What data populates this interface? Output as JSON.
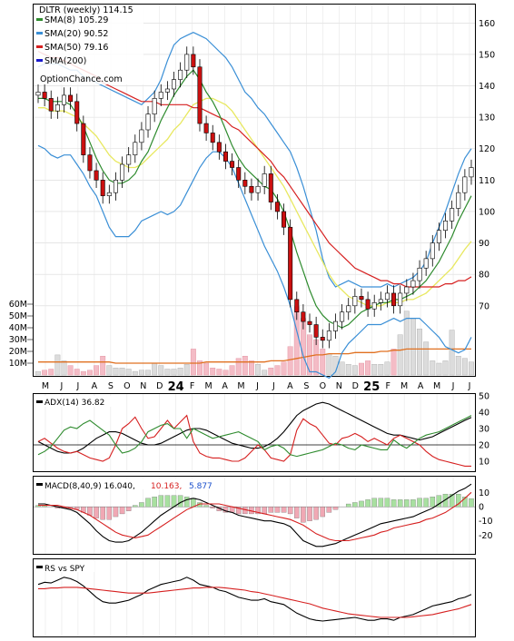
{
  "chart_data": [
    {
      "panel": "price",
      "type": "candlestick",
      "title": "DLTR (weekly) 114.15",
      "watermark": "OptionChance.com",
      "ylim": [
        50,
        165
      ],
      "yticks": [
        "160",
        "150",
        "140",
        "130",
        "120",
        "110",
        "100",
        "90",
        "80",
        "70"
      ],
      "volume_ticks": [
        "60M",
        "50M",
        "40M",
        "30M",
        "20M",
        "10M"
      ],
      "volume_ylim": [
        0,
        70
      ],
      "x_ticks": [
        "M",
        "J",
        "J",
        "A",
        "S",
        "O",
        "N",
        "D",
        "24",
        "F",
        "M",
        "A",
        "M",
        "J",
        "J",
        "A",
        "S",
        "O",
        "N",
        "D",
        "25",
        "F",
        "M",
        "A",
        "M",
        "J",
        "J"
      ],
      "legend": [
        {
          "label": "SMA(8) 105.29",
          "color": "#2e8b2e"
        },
        {
          "label": "SMA(20) 90.52",
          "color": "#3a8fd6"
        },
        {
          "label": "SMA(50) 79.16",
          "color": "#d62020"
        },
        {
          "label": "SMA(200)",
          "color": "#1a1acc"
        }
      ],
      "close": [
        138,
        136,
        132,
        134,
        137,
        135,
        128,
        118,
        113,
        110,
        105,
        106,
        110,
        115,
        118,
        122,
        126,
        131,
        136,
        138,
        139,
        142,
        145,
        150,
        146,
        128,
        125,
        122,
        119,
        116,
        114,
        110,
        108,
        106,
        108,
        112,
        103,
        100,
        95,
        72,
        68,
        65,
        64,
        60,
        59,
        62,
        65,
        68,
        70,
        73,
        72,
        69,
        71,
        72,
        74,
        70,
        74,
        76,
        78,
        82,
        85,
        90,
        94,
        97,
        101,
        106,
        111,
        114
      ],
      "sma8": [
        136,
        136,
        135,
        135,
        135,
        134,
        131,
        127,
        122,
        117,
        113,
        110,
        109,
        109,
        110,
        112,
        116,
        119,
        124,
        129,
        133,
        137,
        140,
        143,
        145,
        142,
        138,
        135,
        131,
        126,
        121,
        117,
        114,
        112,
        110,
        108,
        107,
        104,
        100,
        94,
        87,
        81,
        75,
        70,
        67,
        65,
        64,
        63,
        64,
        66,
        68,
        69,
        70,
        71,
        71,
        72,
        72,
        73,
        74,
        76,
        78,
        81,
        84,
        88,
        92,
        97,
        101,
        105
      ],
      "sma20_mid": [
        133,
        133,
        132,
        132,
        132,
        131,
        130,
        128,
        126,
        124,
        121,
        118,
        116,
        115,
        114,
        114,
        115,
        117,
        119,
        121,
        123,
        126,
        128,
        131,
        134,
        135,
        136,
        136,
        135,
        134,
        132,
        129,
        126,
        123,
        120,
        117,
        114,
        111,
        108,
        104,
        100,
        96,
        92,
        88,
        84,
        80,
        77,
        75,
        73,
        72,
        71,
        70,
        70,
        70,
        71,
        71,
        71,
        72,
        72,
        73,
        74,
        76,
        78,
        80,
        82,
        85,
        88,
        90.5
      ],
      "sma20_upper": [
        146,
        147,
        147,
        147,
        146,
        145,
        145,
        143,
        142,
        141,
        140,
        139,
        138,
        137,
        136,
        135,
        134,
        136,
        138,
        142,
        148,
        153,
        155,
        156,
        157,
        156,
        155,
        153,
        151,
        149,
        146,
        142,
        138,
        136,
        133,
        131,
        128,
        125,
        122,
        119,
        114,
        108,
        101,
        94,
        85,
        79,
        76,
        77,
        78,
        77,
        76,
        76,
        76,
        76,
        77,
        76,
        77,
        78,
        79,
        81,
        84,
        90,
        95,
        100,
        106,
        112,
        117,
        120
      ],
      "sma20_lower": [
        121,
        120,
        118,
        117,
        118,
        118,
        115,
        112,
        108,
        105,
        100,
        95,
        92,
        92,
        92,
        94,
        97,
        98,
        99,
        100,
        99,
        100,
        102,
        106,
        110,
        114,
        117,
        119,
        119,
        117,
        114,
        109,
        104,
        99,
        94,
        89,
        85,
        81,
        76,
        70,
        62,
        54,
        49,
        49,
        48,
        47,
        49,
        55,
        58,
        60,
        62,
        64,
        64,
        64,
        65,
        66,
        65,
        66,
        66,
        66,
        64,
        62,
        60,
        57,
        56,
        55,
        56,
        60
      ],
      "sma50": [
        151,
        150,
        149,
        149,
        148,
        147,
        146,
        145,
        144,
        143,
        141,
        140,
        139,
        138,
        137,
        136,
        135,
        135,
        135,
        134,
        134,
        134,
        134,
        134,
        133,
        133,
        132,
        131,
        130,
        129,
        127,
        126,
        124,
        122,
        120,
        118,
        116,
        113,
        111,
        108,
        105,
        102,
        99,
        96,
        93,
        90,
        88,
        86,
        84,
        82,
        81,
        80,
        79,
        78,
        78,
        77,
        77,
        76,
        76,
        76,
        76,
        76,
        76,
        77,
        77,
        78,
        78,
        79.2
      ],
      "volume": [
        3,
        4,
        5,
        17,
        12,
        8,
        5,
        3,
        4,
        8,
        16,
        8,
        6,
        6,
        5,
        3,
        4,
        4,
        10,
        8,
        5,
        5,
        6,
        9,
        22,
        12,
        10,
        6,
        5,
        4,
        8,
        14,
        16,
        12,
        9,
        4,
        6,
        8,
        11,
        24,
        58,
        48,
        34,
        30,
        22,
        18,
        16,
        11,
        9,
        8,
        10,
        12,
        9,
        9,
        11,
        22,
        34,
        54,
        48,
        39,
        28,
        12,
        10,
        12,
        38,
        16,
        14,
        11
      ],
      "volume_avg": [
        11,
        11,
        11,
        11,
        11,
        11,
        11,
        11,
        11,
        11,
        11,
        11,
        10,
        10,
        10,
        10,
        10,
        10,
        10,
        10,
        10,
        10,
        10,
        10,
        10,
        10,
        11,
        11,
        11,
        11,
        11,
        11,
        11,
        11,
        11,
        11,
        12,
        12,
        12,
        13,
        14,
        15,
        16,
        17,
        17,
        18,
        18,
        18,
        18,
        19,
        19,
        19,
        19,
        20,
        20,
        21,
        21,
        22,
        22,
        22,
        22,
        22,
        22,
        22,
        22,
        22,
        22,
        22
      ]
    },
    {
      "panel": "adx",
      "type": "line",
      "title": "ADX(14) 36.82",
      "ylim": [
        5,
        50
      ],
      "yticks": [
        "50",
        "40",
        "30",
        "20",
        "10"
      ],
      "series": [
        {
          "name": "ADX",
          "color": "#000000",
          "values": [
            22,
            20,
            18,
            16,
            15,
            15,
            16,
            18,
            21,
            24,
            26,
            28,
            28,
            27,
            25,
            23,
            21,
            20,
            20,
            21,
            23,
            25,
            27,
            29,
            30,
            30,
            29,
            27,
            25,
            23,
            21,
            20,
            19,
            18,
            18,
            19,
            21,
            24,
            28,
            33,
            38,
            41,
            43,
            45,
            46,
            45,
            43,
            41,
            39,
            37,
            35,
            33,
            31,
            29,
            27,
            26,
            26,
            25,
            24,
            23,
            24,
            25,
            27,
            29,
            31,
            33,
            35,
            36.8
          ]
        },
        {
          "name": "+DI",
          "color": "#d62020",
          "values": [
            22,
            24,
            21,
            18,
            16,
            15,
            16,
            14,
            12,
            11,
            10,
            12,
            20,
            30,
            33,
            37,
            30,
            24,
            25,
            30,
            35,
            30,
            34,
            38,
            22,
            15,
            13,
            12,
            12,
            11,
            10,
            10,
            12,
            16,
            20,
            17,
            12,
            11,
            10,
            14,
            29,
            36,
            33,
            31,
            26,
            21,
            20,
            24,
            25,
            27,
            25,
            22,
            24,
            22,
            20,
            24,
            26,
            24,
            22,
            20,
            16,
            13,
            11,
            10,
            9,
            8,
            7,
            7
          ]
        },
        {
          "name": "-DI",
          "color": "#2e8b2e",
          "values": [
            14,
            16,
            19,
            24,
            29,
            31,
            30,
            33,
            35,
            32,
            29,
            26,
            20,
            15,
            16,
            18,
            22,
            28,
            30,
            32,
            33,
            30,
            30,
            24,
            30,
            28,
            26,
            24,
            25,
            26,
            27,
            28,
            26,
            24,
            22,
            17,
            19,
            20,
            18,
            14,
            13,
            14,
            15,
            16,
            17,
            19,
            21,
            20,
            18,
            17,
            20,
            19,
            18,
            17,
            17,
            23,
            20,
            18,
            21,
            24,
            26,
            27,
            28,
            30,
            32,
            34,
            36,
            38
          ]
        }
      ],
      "reference": 20
    },
    {
      "panel": "macd",
      "type": "line",
      "title": "MACD(8,40,9) 16.040,",
      "signal_label": "10.163,",
      "hist_label": "5.877",
      "ylim": [
        -32,
        20
      ],
      "yticks": [
        "10",
        "0",
        "-10",
        "-20"
      ],
      "series": [
        {
          "name": "MACD",
          "color": "#000000",
          "values": [
            2,
            2,
            1,
            0,
            -1,
            -2,
            -4,
            -8,
            -12,
            -17,
            -21,
            -24,
            -25,
            -25,
            -24,
            -21,
            -18,
            -14,
            -10,
            -6,
            -3,
            0,
            3,
            5,
            6,
            5,
            3,
            1,
            -1,
            -3,
            -4,
            -6,
            -7,
            -8,
            -9,
            -10,
            -10,
            -11,
            -12,
            -14,
            -19,
            -24,
            -26,
            -28,
            -28,
            -27,
            -26,
            -24,
            -22,
            -20,
            -18,
            -16,
            -14,
            -12,
            -11,
            -10,
            -9,
            -8,
            -7,
            -5,
            -3,
            -1,
            2,
            5,
            8,
            11,
            13,
            16
          ]
        },
        {
          "name": "Signal",
          "color": "#d62020",
          "values": [
            1,
            1,
            1,
            1,
            0,
            -1,
            -2,
            -4,
            -6,
            -9,
            -12,
            -15,
            -18,
            -20,
            -21,
            -22,
            -21,
            -20,
            -17,
            -14,
            -11,
            -8,
            -5,
            -2,
            0,
            2,
            2,
            2,
            2,
            1,
            0,
            -1,
            -2,
            -3,
            -4,
            -5,
            -6,
            -7,
            -8,
            -9,
            -11,
            -13,
            -16,
            -19,
            -21,
            -23,
            -24,
            -24,
            -24,
            -23,
            -22,
            -21,
            -20,
            -18,
            -17,
            -15,
            -14,
            -13,
            -12,
            -11,
            -9,
            -8,
            -6,
            -4,
            -1,
            2,
            6,
            10.2
          ]
        }
      ]
    },
    {
      "panel": "rs",
      "type": "line",
      "title": "RS vs SPY",
      "ylim": [
        0,
        100
      ],
      "series": [
        {
          "name": "RS",
          "color": "#000000",
          "values": [
            70,
            73,
            72,
            76,
            80,
            78,
            74,
            68,
            60,
            52,
            46,
            44,
            44,
            46,
            48,
            52,
            56,
            62,
            66,
            70,
            72,
            74,
            76,
            80,
            76,
            70,
            68,
            66,
            62,
            60,
            56,
            52,
            50,
            48,
            48,
            50,
            46,
            44,
            42,
            36,
            30,
            26,
            22,
            20,
            19,
            20,
            21,
            22,
            23,
            24,
            22,
            20,
            20,
            22,
            22,
            20,
            24,
            26,
            28,
            32,
            36,
            40,
            42,
            44,
            46,
            50,
            52,
            56
          ]
        },
        {
          "name": "RS MA",
          "color": "#d62020",
          "values": [
            64,
            64,
            65,
            65,
            66,
            66,
            66,
            65,
            64,
            63,
            62,
            61,
            60,
            59,
            58,
            58,
            58,
            58,
            59,
            60,
            61,
            62,
            63,
            64,
            65,
            65,
            66,
            66,
            66,
            65,
            64,
            63,
            62,
            60,
            59,
            57,
            55,
            53,
            51,
            49,
            47,
            45,
            43,
            40,
            37,
            35,
            33,
            31,
            29,
            28,
            27,
            26,
            25,
            24,
            24,
            24,
            24,
            24,
            25,
            26,
            27,
            28,
            30,
            32,
            34,
            36,
            39,
            42
          ]
        }
      ]
    }
  ]
}
